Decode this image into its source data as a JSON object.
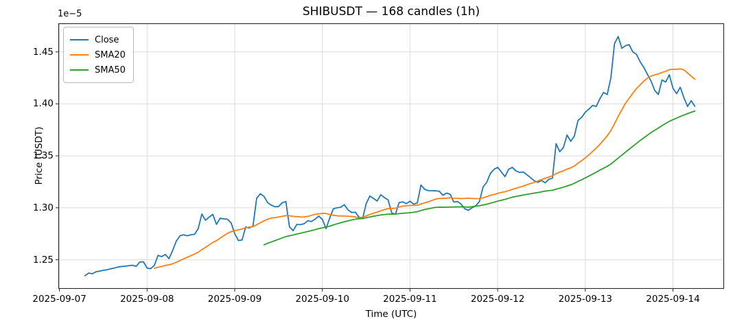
{
  "chart_data": {
    "type": "line",
    "title": "SHIBUSDT — 168 candles (1h)",
    "xlabel": "Time (UTC)",
    "ylabel": "Price (USDT)",
    "y_offset_text": "1e−5",
    "symbol": "SHIBUSDT",
    "candles": 168,
    "interval": "1h",
    "grid": true,
    "legend_position": "upper left",
    "legend": [
      {
        "label": "Close",
        "color": "#1f77b4"
      },
      {
        "label": "SMA20",
        "color": "#ff7f0e"
      },
      {
        "label": "SMA50",
        "color": "#2ca02c"
      }
    ],
    "x_ticks": {
      "labels": [
        "2025-09-07",
        "2025-09-08",
        "2025-09-09",
        "2025-09-10",
        "2025-09-11",
        "2025-09-12",
        "2025-09-13",
        "2025-09-14"
      ],
      "positions_hours": [
        -7,
        17,
        41,
        65,
        89,
        113,
        137,
        161
      ]
    },
    "y_ticks": {
      "labels": [
        "1.25",
        "1.30",
        "1.35",
        "1.40",
        "1.45"
      ],
      "values": [
        1.25,
        1.3,
        1.35,
        1.4,
        1.45
      ]
    },
    "xlim_hours": [
      -7.3,
      175.0
    ],
    "ylim": [
      1.222,
      1.4775
    ],
    "y_unit_scale": "1e-5",
    "series": [
      {
        "name": "Close",
        "derived": false,
        "values": [
          1.2346,
          1.2372,
          1.2365,
          1.2384,
          1.239,
          1.2398,
          1.2403,
          1.2412,
          1.242,
          1.243,
          1.2435,
          1.2438,
          1.2443,
          1.2447,
          1.2436,
          1.2478,
          1.248,
          1.242,
          1.2414,
          1.2447,
          1.2542,
          1.253,
          1.2551,
          1.251,
          1.259,
          1.268,
          1.273,
          1.2741,
          1.2731,
          1.274,
          1.2745,
          1.28,
          1.294,
          1.288,
          1.291,
          1.2937,
          1.284,
          1.29,
          1.2893,
          1.289,
          1.2855,
          1.275,
          1.2685,
          1.269,
          1.2815,
          1.2805,
          1.2825,
          1.309,
          1.3135,
          1.311,
          1.305,
          1.3025,
          1.301,
          1.3012,
          1.3048,
          1.306,
          1.2815,
          1.278,
          1.284,
          1.2838,
          1.2846,
          1.2875,
          1.2868,
          1.289,
          1.292,
          1.2888,
          1.28,
          1.29,
          1.299,
          1.3,
          1.3005,
          1.303,
          1.298,
          1.2955,
          1.2958,
          1.2912,
          1.2895,
          1.304,
          1.3113,
          1.309,
          1.3065,
          1.3125,
          1.3098,
          1.3076,
          1.295,
          1.2938,
          1.305,
          1.3057,
          1.304,
          1.3063,
          1.3035,
          1.3047,
          1.3219,
          1.3178,
          1.3165,
          1.3164,
          1.3163,
          1.316,
          1.312,
          1.3142,
          1.313,
          1.3055,
          1.306,
          1.3035,
          1.299,
          1.2976,
          1.3,
          1.302,
          1.306,
          1.32,
          1.3245,
          1.333,
          1.337,
          1.3389,
          1.3345,
          1.33,
          1.337,
          1.3389,
          1.3355,
          1.334,
          1.3344,
          1.3318,
          1.329,
          1.326,
          1.3245,
          1.3263,
          1.324,
          1.3274,
          1.3285,
          1.3616,
          1.354,
          1.358,
          1.37,
          1.364,
          1.369,
          1.384,
          1.387,
          1.392,
          1.395,
          1.3985,
          1.3975,
          1.405,
          1.411,
          1.409,
          1.425,
          1.458,
          1.4648,
          1.4535,
          1.456,
          1.457,
          1.45,
          1.4477,
          1.4406,
          1.4351,
          1.4285,
          1.4219,
          1.413,
          1.409,
          1.423,
          1.421,
          1.428,
          1.415,
          1.4098,
          1.416,
          1.406,
          1.3975,
          1.403,
          1.3977
        ]
      },
      {
        "name": "SMA20",
        "derived": true,
        "window": 20,
        "source": "Close"
      },
      {
        "name": "SMA50",
        "derived": true,
        "window": 50,
        "source": "Close"
      }
    ]
  }
}
